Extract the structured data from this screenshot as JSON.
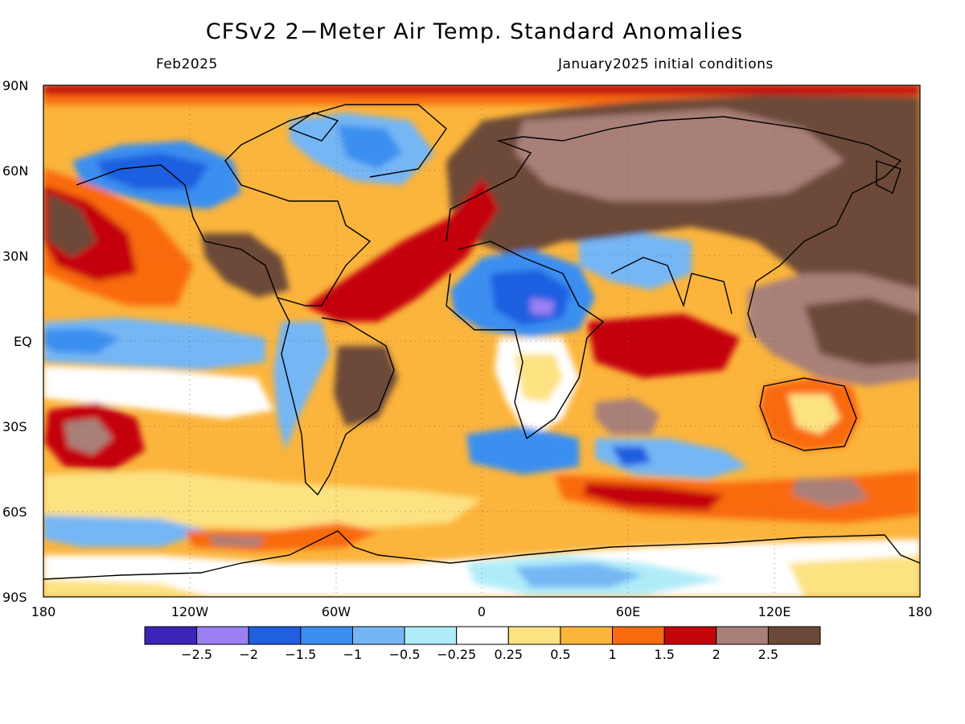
{
  "title": "CFSv2 2−Meter Air Temp. Standard Anomalies",
  "valid_month": "Feb2025",
  "init_conditions": "January2025 initial conditions",
  "lat_labels": [
    "90N",
    "60N",
    "30N",
    "EQ",
    "30S",
    "60S",
    "90S"
  ],
  "lon_labels": [
    "180",
    "120W",
    "60W",
    "0",
    "60E",
    "120E",
    "180"
  ],
  "colorbar": {
    "colors": [
      "#3a25b8",
      "#9a80f2",
      "#1f5fe0",
      "#3b8ff0",
      "#74b6f5",
      "#b0ecf8",
      "#ffffff",
      "#fde282",
      "#fbb43c",
      "#f96a10",
      "#c4060a",
      "#a88078",
      "#6c4838"
    ],
    "tick_labels": [
      "−2.5",
      "−2",
      "−1.5",
      "−1",
      "−0.5",
      "−0.25",
      "0.25",
      "0.5",
      "1",
      "1.5",
      "2",
      "2.5"
    ]
  }
}
